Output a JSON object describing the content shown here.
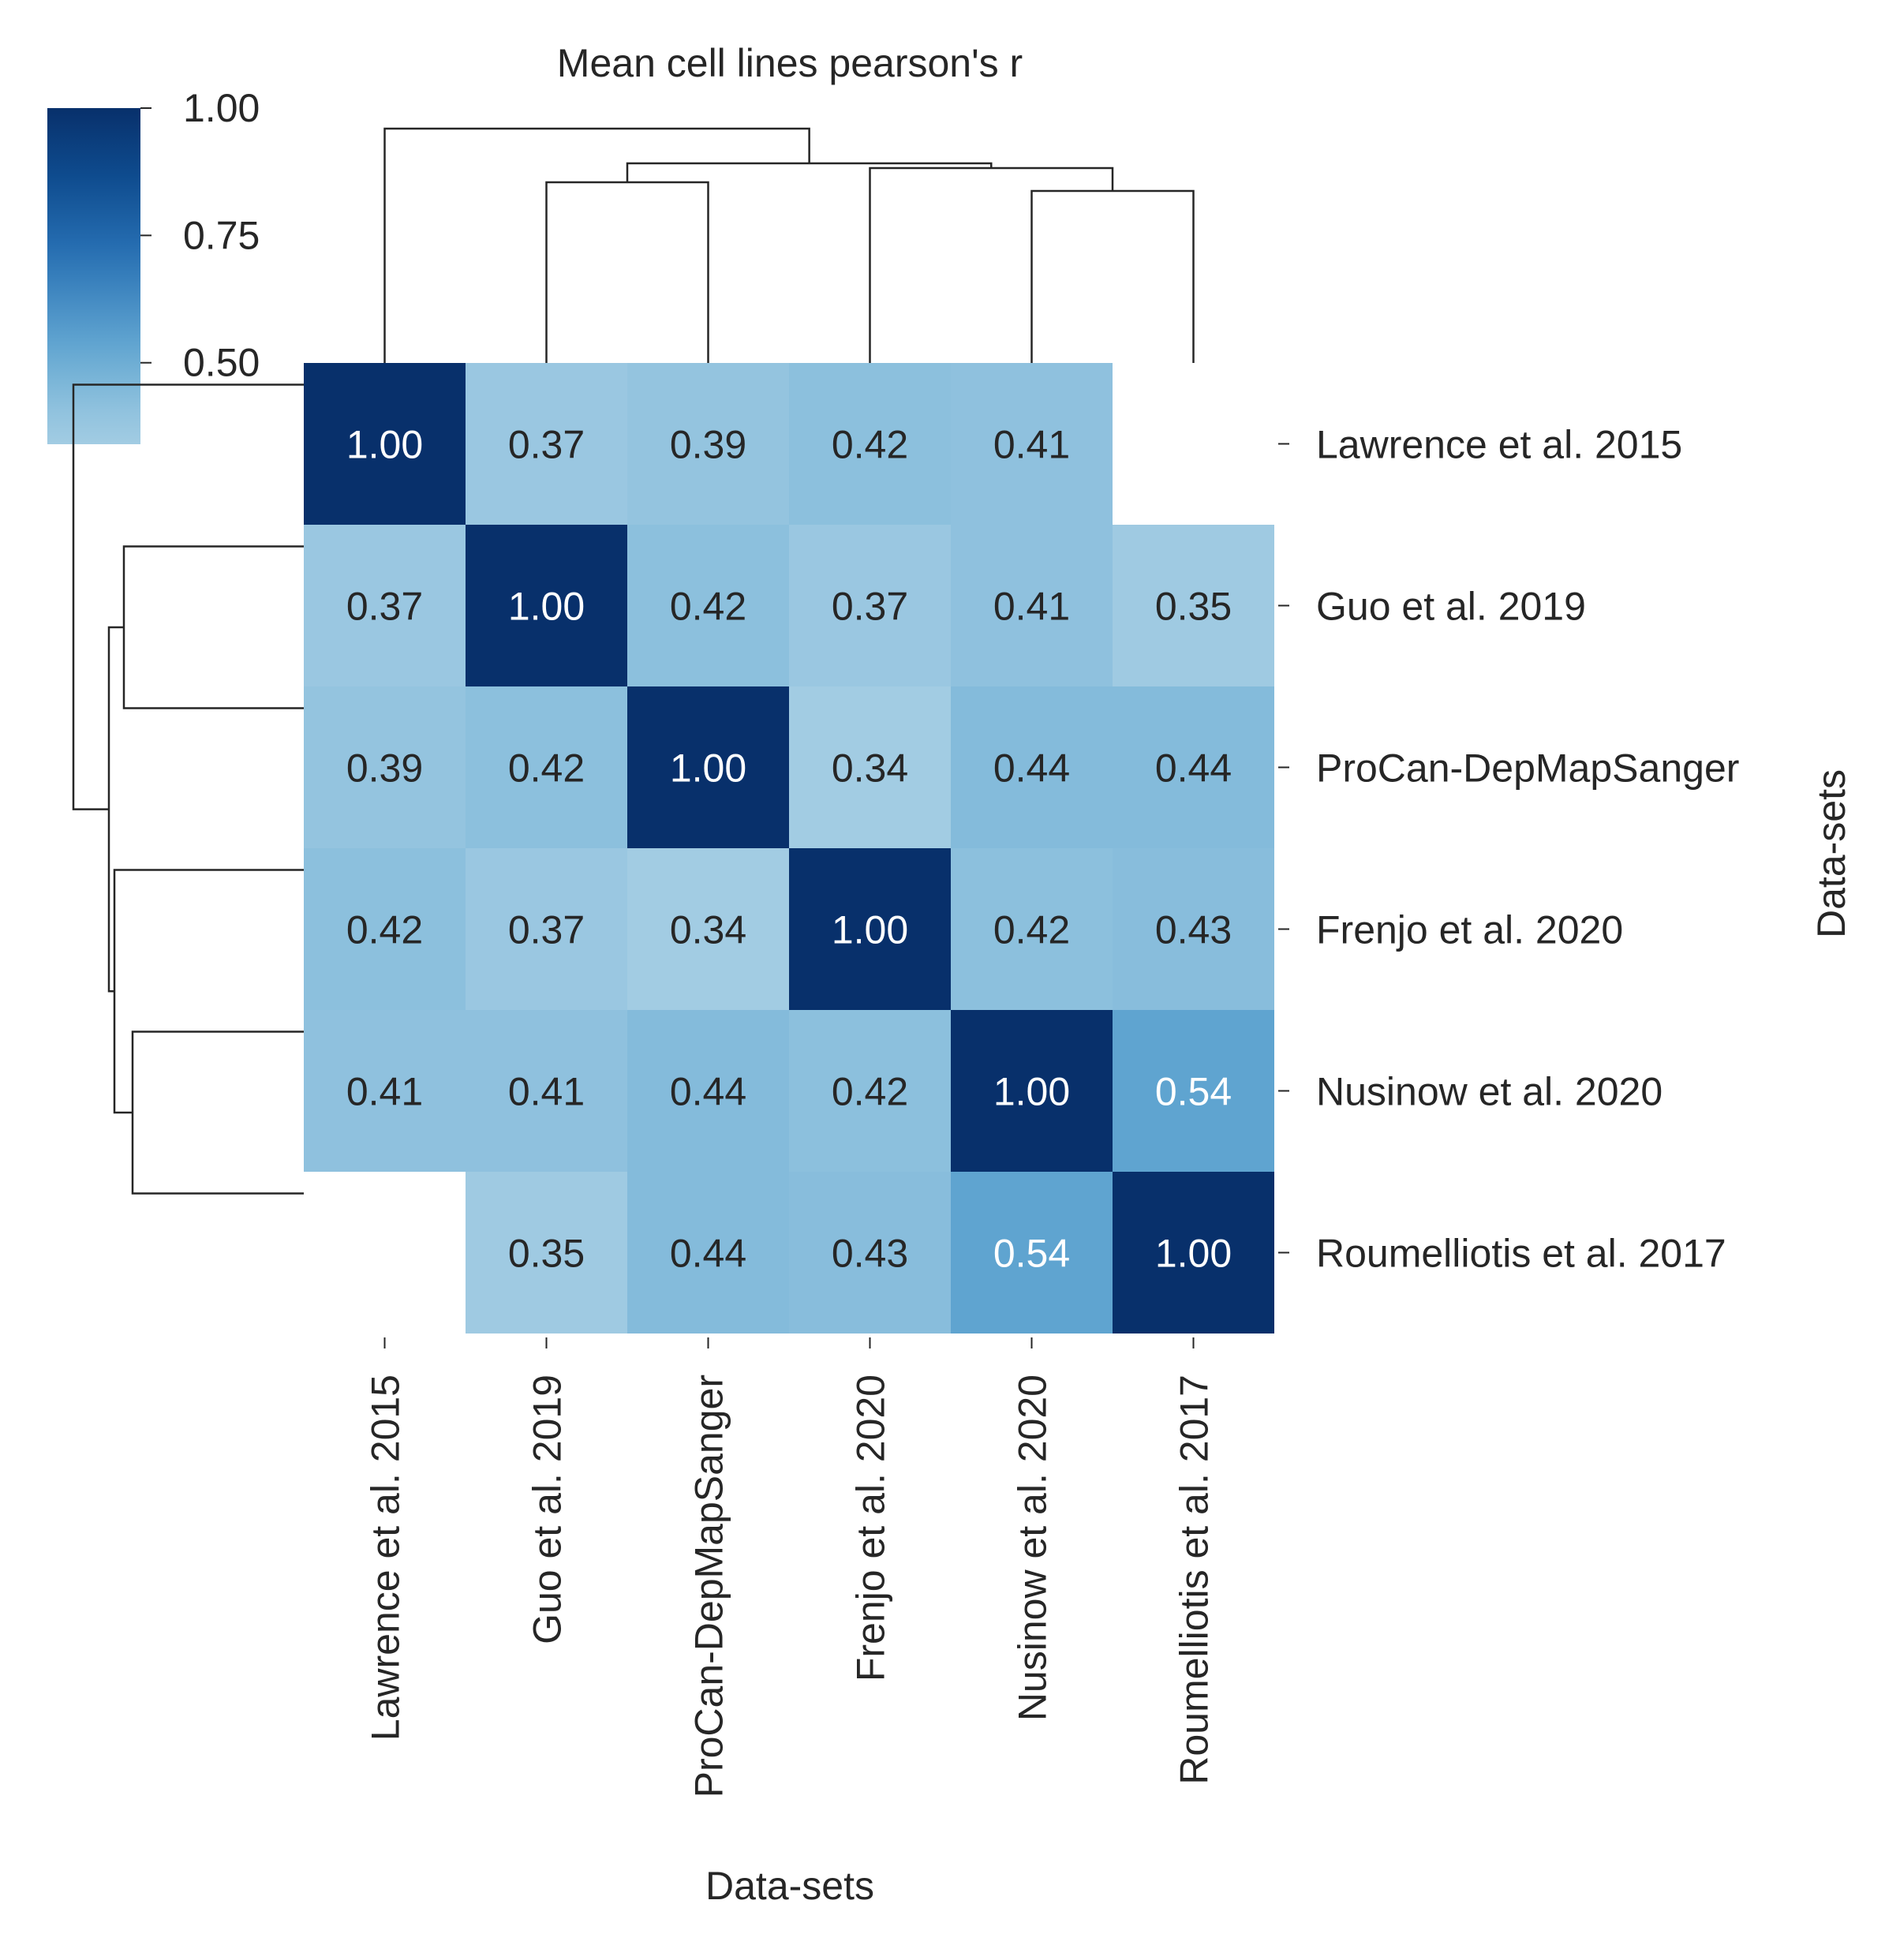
{
  "chart_data": {
    "type": "heatmap",
    "title": "Mean cell lines pearson's r",
    "xlabel": "Data-sets",
    "ylabel": "Data-sets",
    "labels": [
      "Lawrence et al. 2015",
      "Guo et al. 2019",
      "ProCan-DepMapSanger",
      "Frenjo et al. 2020",
      "Nusinow et al. 2020",
      "Roumelliotis et al. 2017"
    ],
    "matrix": [
      [
        1.0,
        0.37,
        0.39,
        0.42,
        0.41,
        null
      ],
      [
        0.37,
        1.0,
        0.42,
        0.37,
        0.41,
        0.35
      ],
      [
        0.39,
        0.42,
        1.0,
        0.34,
        0.44,
        0.44
      ],
      [
        0.42,
        0.37,
        0.34,
        1.0,
        0.42,
        0.43
      ],
      [
        0.41,
        0.41,
        0.44,
        0.42,
        1.0,
        0.54
      ],
      [
        null,
        0.35,
        0.44,
        0.43,
        0.54,
        1.0
      ]
    ],
    "value_format": "0.00",
    "colormap": "Blues",
    "colorbar": {
      "ticks": [
        "0.50",
        "0.75",
        "1.00"
      ],
      "range": [
        0.34,
        1.0
      ],
      "placement": "top-left"
    },
    "dendrograms": [
      "top",
      "left"
    ]
  }
}
